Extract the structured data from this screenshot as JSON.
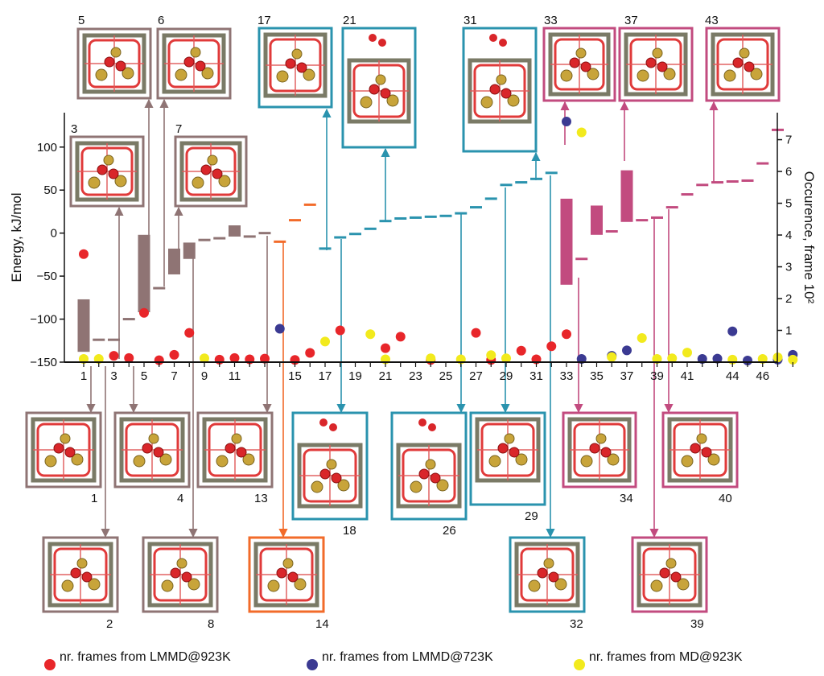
{
  "chart_data": {
    "type": "scatter",
    "title": "",
    "ylabel": "Energy, kJ/mol",
    "y2label": "Occurence, frame 10²",
    "ylim": [
      -150,
      140
    ],
    "y2lim": [
      0,
      7.85
    ],
    "xlim": [
      0.3,
      47.9
    ],
    "x_ticks": [
      1,
      3,
      5,
      7,
      9,
      11,
      15,
      17,
      19,
      21,
      23,
      25,
      27,
      29,
      31,
      33,
      35,
      37,
      39,
      41,
      44,
      46
    ],
    "y_ticks": [
      -150,
      -100,
      -50,
      0,
      50,
      100
    ],
    "y2_ticks": [
      1,
      2,
      3,
      4,
      5,
      6,
      7
    ],
    "y2_tick_labels": [
      "1",
      "2",
      "3",
      "4",
      "5",
      "6",
      "7"
    ],
    "colors": {
      "brown": "#8f7474",
      "orange": "#f26b2a",
      "teal": "#2a93ae",
      "magenta": "#c24b7f",
      "red": "#e8262a",
      "navy": "#3b3a92",
      "yellow": "#f2ea1d"
    },
    "energy_levels": [
      {
        "x": 1,
        "box": [
          -138,
          -77
        ],
        "group": "brown"
      },
      {
        "x": 2,
        "y": -124,
        "group": "brown"
      },
      {
        "x": 3,
        "y": -124,
        "group": "brown"
      },
      {
        "x": 4,
        "y": -100,
        "group": "brown"
      },
      {
        "x": 5,
        "box": [
          -92,
          -2
        ],
        "group": "brown"
      },
      {
        "x": 6,
        "y": -64,
        "group": "brown"
      },
      {
        "x": 7,
        "box": [
          -48,
          -18
        ],
        "group": "brown"
      },
      {
        "x": 8,
        "box": [
          -30,
          -11
        ],
        "group": "brown"
      },
      {
        "x": 9,
        "y": -8,
        "group": "brown"
      },
      {
        "x": 10,
        "y": -6,
        "group": "brown"
      },
      {
        "x": 11,
        "box": [
          -4,
          9
        ],
        "group": "brown"
      },
      {
        "x": 12,
        "y": -4,
        "group": "brown"
      },
      {
        "x": 13,
        "y": 0,
        "group": "brown"
      },
      {
        "x": 14,
        "y": -10,
        "group": "orange"
      },
      {
        "x": 15,
        "y": 15,
        "group": "orange"
      },
      {
        "x": 16,
        "y": 33,
        "group": "orange"
      },
      {
        "x": 17,
        "y": -18,
        "group": "teal"
      },
      {
        "x": 18,
        "y": -5,
        "group": "teal"
      },
      {
        "x": 19,
        "y": -1,
        "group": "teal"
      },
      {
        "x": 20,
        "y": 5,
        "group": "teal"
      },
      {
        "x": 21,
        "y": 14,
        "group": "teal"
      },
      {
        "x": 22,
        "y": 17,
        "group": "teal"
      },
      {
        "x": 23,
        "y": 18,
        "group": "teal"
      },
      {
        "x": 24,
        "y": 19,
        "group": "teal"
      },
      {
        "x": 25,
        "y": 20,
        "group": "teal"
      },
      {
        "x": 26,
        "y": 23,
        "group": "teal"
      },
      {
        "x": 27,
        "y": 30,
        "group": "teal"
      },
      {
        "x": 28,
        "y": 40,
        "group": "teal"
      },
      {
        "x": 29,
        "y": 56,
        "group": "teal"
      },
      {
        "x": 30,
        "y": 59,
        "group": "teal"
      },
      {
        "x": 31,
        "y": 63,
        "group": "teal"
      },
      {
        "x": 32,
        "y": 70,
        "group": "teal"
      },
      {
        "x": 33,
        "box": [
          -60,
          40
        ],
        "group": "magenta"
      },
      {
        "x": 34,
        "y": -30,
        "group": "magenta"
      },
      {
        "x": 35,
        "box": [
          -2,
          32
        ],
        "group": "magenta"
      },
      {
        "x": 36,
        "y": 2,
        "group": "magenta"
      },
      {
        "x": 37,
        "box": [
          13,
          73
        ],
        "group": "magenta"
      },
      {
        "x": 38,
        "y": 15,
        "group": "magenta"
      },
      {
        "x": 39,
        "y": 18,
        "group": "magenta"
      },
      {
        "x": 40,
        "y": 30,
        "group": "magenta"
      },
      {
        "x": 41,
        "y": 45,
        "group": "magenta"
      },
      {
        "x": 42,
        "y": 56,
        "group": "magenta"
      },
      {
        "x": 43,
        "y": 59,
        "group": "magenta"
      },
      {
        "x": 44,
        "y": 60,
        "group": "magenta"
      },
      {
        "x": 45,
        "y": 61,
        "group": "magenta"
      },
      {
        "x": 46,
        "y": 81,
        "group": "magenta"
      },
      {
        "x": 47,
        "y": 120,
        "group": "magenta"
      }
    ],
    "series": [
      {
        "name": "nr. frames from LMMD@923K",
        "color": "#e8262a",
        "points": [
          [
            1,
            3.4
          ],
          [
            3,
            0.2
          ],
          [
            4,
            0.13
          ],
          [
            5,
            1.55
          ],
          [
            6,
            0.06
          ],
          [
            7,
            0.23
          ],
          [
            8,
            0.92
          ],
          [
            10,
            0.08
          ],
          [
            11,
            0.13
          ],
          [
            12,
            0.09
          ],
          [
            13,
            0.11
          ],
          [
            15,
            0.07
          ],
          [
            16,
            0.29
          ],
          [
            18,
            1.0
          ],
          [
            21,
            0.44
          ],
          [
            22,
            0.8
          ],
          [
            24,
            0.07
          ],
          [
            27,
            0.92
          ],
          [
            28,
            0.07
          ],
          [
            30,
            0.36
          ],
          [
            31,
            0.09
          ],
          [
            32,
            0.5
          ],
          [
            33,
            0.88
          ]
        ]
      },
      {
        "name": "nr. frames from LMMD@723K",
        "color": "#3b3a92",
        "points": [
          [
            14,
            1.05
          ],
          [
            33,
            7.57
          ],
          [
            34,
            0.1
          ],
          [
            36,
            0.2
          ],
          [
            37,
            0.37
          ],
          [
            42,
            0.1
          ],
          [
            43,
            0.11
          ],
          [
            44,
            0.97
          ],
          [
            45,
            0.05
          ],
          [
            47,
            0.08
          ],
          [
            48,
            0.23
          ]
        ]
      },
      {
        "name": "nr. frames from MD@923K",
        "color": "#f2ea1d",
        "points": [
          [
            1,
            0.1
          ],
          [
            2,
            0.1
          ],
          [
            9,
            0.12
          ],
          [
            17,
            0.65
          ],
          [
            20,
            0.88
          ],
          [
            21,
            0.09
          ],
          [
            24,
            0.12
          ],
          [
            26,
            0.09
          ],
          [
            28,
            0.22
          ],
          [
            29,
            0.12
          ],
          [
            34,
            7.23
          ],
          [
            36,
            0.16
          ],
          [
            38,
            0.76
          ],
          [
            39,
            0.1
          ],
          [
            40,
            0.12
          ],
          [
            41,
            0.3
          ],
          [
            44,
            0.08
          ],
          [
            46,
            0.1
          ],
          [
            47,
            0.15
          ],
          [
            48,
            0.08
          ]
        ]
      }
    ],
    "structure_labels": [
      "5",
      "6",
      "17",
      "21",
      "31",
      "33",
      "37",
      "43",
      "3",
      "7",
      "1",
      "4",
      "13",
      "18",
      "26",
      "29",
      "34",
      "40",
      "2",
      "8",
      "14",
      "32",
      "39"
    ],
    "legend_position": "bottom"
  }
}
